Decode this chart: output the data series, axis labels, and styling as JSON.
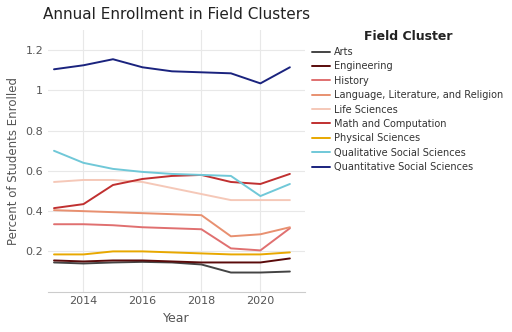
{
  "title": "Annual Enrollment in Field Clusters",
  "xlabel": "Year",
  "ylabel": "Percent of Students Enrolled",
  "legend_title": "Field Cluster",
  "years": [
    2013,
    2014,
    2015,
    2016,
    2017,
    2018,
    2019,
    2020,
    2021
  ],
  "series": {
    "Arts": {
      "color": "#444444",
      "values": [
        0.145,
        0.14,
        0.145,
        0.148,
        0.145,
        0.135,
        0.095,
        0.095,
        0.1
      ]
    },
    "Engineering": {
      "color": "#5a0a0a",
      "values": [
        0.155,
        0.15,
        0.155,
        0.155,
        0.15,
        0.145,
        0.145,
        0.145,
        0.165
      ]
    },
    "History": {
      "color": "#e07070",
      "values": [
        0.335,
        0.335,
        0.33,
        0.32,
        0.315,
        0.31,
        0.215,
        0.205,
        0.315
      ]
    },
    "Language, Literature, and Religion": {
      "color": "#e89070",
      "values": [
        0.405,
        0.4,
        0.395,
        0.39,
        0.385,
        0.38,
        0.275,
        0.285,
        0.32
      ]
    },
    "Life Sciences": {
      "color": "#f5c8b8",
      "values": [
        0.545,
        0.555,
        0.555,
        0.545,
        0.515,
        0.485,
        0.455,
        0.455,
        0.455
      ]
    },
    "Math and Computation": {
      "color": "#c03030",
      "values": [
        0.415,
        0.435,
        0.53,
        0.56,
        0.575,
        0.58,
        0.545,
        0.535,
        0.585
      ]
    },
    "Physical Sciences": {
      "color": "#e8a800",
      "values": [
        0.185,
        0.185,
        0.2,
        0.2,
        0.195,
        0.19,
        0.185,
        0.185,
        0.195
      ]
    },
    "Qualitative Social Sciences": {
      "color": "#70c8d8",
      "values": [
        0.7,
        0.64,
        0.61,
        0.595,
        0.585,
        0.58,
        0.575,
        0.475,
        0.535
      ]
    },
    "Quantitative Social Sciences": {
      "color": "#1a237e",
      "values": [
        1.105,
        1.125,
        1.155,
        1.115,
        1.095,
        1.09,
        1.085,
        1.035,
        1.115
      ]
    }
  },
  "ylim": [
    0,
    1.3
  ],
  "yticks": [
    0.2,
    0.4,
    0.6,
    0.8,
    1.0,
    1.2
  ],
  "ytick_labels": [
    "0.2",
    "0.4",
    "0.6",
    "0.8",
    "1",
    "1.2"
  ],
  "xticks": [
    2014,
    2016,
    2018,
    2020
  ],
  "background_color": "#ffffff",
  "plot_bg_color": "#ffffff",
  "grid_color": "#e8e8e8",
  "figsize": [
    5.12,
    3.32
  ],
  "dpi": 100,
  "xlim": [
    2012.8,
    2021.5
  ]
}
